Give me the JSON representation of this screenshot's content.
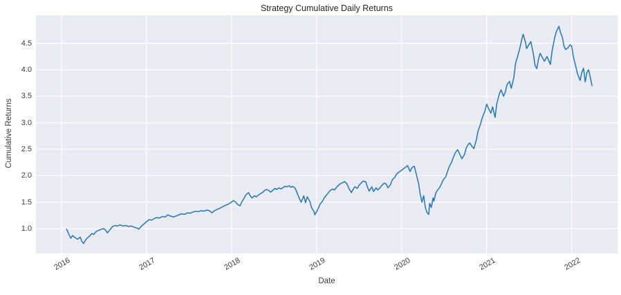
{
  "figure": {
    "background": "#ffffff"
  },
  "chart_data": {
    "type": "line",
    "title": "Strategy Cumulative Daily Returns",
    "xlabel": "Date",
    "ylabel": "Cumulative Returns",
    "xlim": [
      2015.7,
      2022.54
    ],
    "ylim": [
      0.53,
      5.03
    ],
    "grid": true,
    "legend": false,
    "x_ticks": [
      {
        "label": "2016",
        "value": 2016
      },
      {
        "label": "2017",
        "value": 2017
      },
      {
        "label": "2018",
        "value": 2018
      },
      {
        "label": "2019",
        "value": 2019
      },
      {
        "label": "2020",
        "value": 2020
      },
      {
        "label": "2021",
        "value": 2021
      },
      {
        "label": "2022",
        "value": 2022
      }
    ],
    "y_ticks": [
      {
        "label": "1.0",
        "value": 1.0
      },
      {
        "label": "1.5",
        "value": 1.5
      },
      {
        "label": "2.0",
        "value": 2.0
      },
      {
        "label": "2.5",
        "value": 2.5
      },
      {
        "label": "3.0",
        "value": 3.0
      },
      {
        "label": "3.5",
        "value": 3.5
      },
      {
        "label": "4.0",
        "value": 4.0
      },
      {
        "label": "4.5",
        "value": 4.5
      }
    ],
    "style": {
      "axes_background": "#eaeaf2",
      "grid_color": "#ffffff",
      "line_color": "#1f77b4",
      "line_width": 1.5,
      "title_color": "#262626",
      "tick_color": "#3a3a3a"
    },
    "series": [
      {
        "name": "Strategy",
        "color": "#1f77b4",
        "points": [
          [
            2016.06,
            0.99
          ],
          [
            2016.09,
            0.88
          ],
          [
            2016.11,
            0.82
          ],
          [
            2016.13,
            0.87
          ],
          [
            2016.16,
            0.83
          ],
          [
            2016.19,
            0.8
          ],
          [
            2016.22,
            0.84
          ],
          [
            2016.24,
            0.76
          ],
          [
            2016.26,
            0.72
          ],
          [
            2016.29,
            0.8
          ],
          [
            2016.33,
            0.86
          ],
          [
            2016.36,
            0.91
          ],
          [
            2016.38,
            0.89
          ],
          [
            2016.41,
            0.95
          ],
          [
            2016.44,
            0.97
          ],
          [
            2016.47,
            0.99
          ],
          [
            2016.5,
            1.0
          ],
          [
            2016.52,
            0.97
          ],
          [
            2016.54,
            0.92
          ],
          [
            2016.57,
            0.98
          ],
          [
            2016.6,
            1.04
          ],
          [
            2016.63,
            1.06
          ],
          [
            2016.66,
            1.05
          ],
          [
            2016.69,
            1.07
          ],
          [
            2016.72,
            1.05
          ],
          [
            2016.76,
            1.06
          ],
          [
            2016.79,
            1.04
          ],
          [
            2016.82,
            1.05
          ],
          [
            2016.85,
            1.03
          ],
          [
            2016.89,
            1.01
          ],
          [
            2016.91,
            0.99
          ],
          [
            2016.93,
            1.03
          ],
          [
            2016.97,
            1.09
          ],
          [
            2017.0,
            1.13
          ],
          [
            2017.03,
            1.17
          ],
          [
            2017.06,
            1.16
          ],
          [
            2017.09,
            1.19
          ],
          [
            2017.12,
            1.21
          ],
          [
            2017.15,
            1.2
          ],
          [
            2017.19,
            1.23
          ],
          [
            2017.22,
            1.22
          ],
          [
            2017.25,
            1.26
          ],
          [
            2017.28,
            1.24
          ],
          [
            2017.32,
            1.22
          ],
          [
            2017.35,
            1.24
          ],
          [
            2017.38,
            1.26
          ],
          [
            2017.41,
            1.28
          ],
          [
            2017.45,
            1.27
          ],
          [
            2017.48,
            1.3
          ],
          [
            2017.51,
            1.29
          ],
          [
            2017.54,
            1.31
          ],
          [
            2017.58,
            1.33
          ],
          [
            2017.61,
            1.32
          ],
          [
            2017.64,
            1.34
          ],
          [
            2017.67,
            1.33
          ],
          [
            2017.71,
            1.35
          ],
          [
            2017.74,
            1.34
          ],
          [
            2017.77,
            1.3
          ],
          [
            2017.8,
            1.34
          ],
          [
            2017.84,
            1.37
          ],
          [
            2017.87,
            1.39
          ],
          [
            2017.9,
            1.42
          ],
          [
            2017.93,
            1.44
          ],
          [
            2017.97,
            1.47
          ],
          [
            2018.0,
            1.5
          ],
          [
            2018.02,
            1.53
          ],
          [
            2018.05,
            1.5
          ],
          [
            2018.07,
            1.46
          ],
          [
            2018.1,
            1.43
          ],
          [
            2018.12,
            1.5
          ],
          [
            2018.15,
            1.58
          ],
          [
            2018.17,
            1.64
          ],
          [
            2018.2,
            1.68
          ],
          [
            2018.22,
            1.62
          ],
          [
            2018.24,
            1.58
          ],
          [
            2018.27,
            1.62
          ],
          [
            2018.29,
            1.6
          ],
          [
            2018.32,
            1.64
          ],
          [
            2018.34,
            1.66
          ],
          [
            2018.37,
            1.69
          ],
          [
            2018.39,
            1.72
          ],
          [
            2018.41,
            1.74
          ],
          [
            2018.44,
            1.72
          ],
          [
            2018.46,
            1.69
          ],
          [
            2018.49,
            1.73
          ],
          [
            2018.51,
            1.76
          ],
          [
            2018.53,
            1.74
          ],
          [
            2018.56,
            1.77
          ],
          [
            2018.58,
            1.75
          ],
          [
            2018.61,
            1.78
          ],
          [
            2018.63,
            1.8
          ],
          [
            2018.65,
            1.79
          ],
          [
            2018.68,
            1.81
          ],
          [
            2018.7,
            1.78
          ],
          [
            2018.72,
            1.8
          ],
          [
            2018.75,
            1.76
          ],
          [
            2018.77,
            1.68
          ],
          [
            2018.8,
            1.56
          ],
          [
            2018.82,
            1.5
          ],
          [
            2018.85,
            1.62
          ],
          [
            2018.87,
            1.49
          ],
          [
            2018.89,
            1.6
          ],
          [
            2018.92,
            1.52
          ],
          [
            2018.94,
            1.4
          ],
          [
            2018.97,
            1.32
          ],
          [
            2018.98,
            1.26
          ],
          [
            2019.02,
            1.38
          ],
          [
            2019.04,
            1.46
          ],
          [
            2019.07,
            1.52
          ],
          [
            2019.09,
            1.58
          ],
          [
            2019.11,
            1.62
          ],
          [
            2019.14,
            1.68
          ],
          [
            2019.16,
            1.72
          ],
          [
            2019.19,
            1.75
          ],
          [
            2019.21,
            1.73
          ],
          [
            2019.24,
            1.79
          ],
          [
            2019.26,
            1.82
          ],
          [
            2019.28,
            1.85
          ],
          [
            2019.31,
            1.87
          ],
          [
            2019.33,
            1.89
          ],
          [
            2019.36,
            1.84
          ],
          [
            2019.38,
            1.76
          ],
          [
            2019.41,
            1.68
          ],
          [
            2019.43,
            1.74
          ],
          [
            2019.45,
            1.79
          ],
          [
            2019.48,
            1.76
          ],
          [
            2019.5,
            1.82
          ],
          [
            2019.53,
            1.87
          ],
          [
            2019.55,
            1.9
          ],
          [
            2019.58,
            1.88
          ],
          [
            2019.6,
            1.78
          ],
          [
            2019.62,
            1.71
          ],
          [
            2019.65,
            1.79
          ],
          [
            2019.67,
            1.7
          ],
          [
            2019.7,
            1.77
          ],
          [
            2019.72,
            1.73
          ],
          [
            2019.75,
            1.78
          ],
          [
            2019.77,
            1.82
          ],
          [
            2019.8,
            1.86
          ],
          [
            2019.82,
            1.84
          ],
          [
            2019.84,
            1.77
          ],
          [
            2019.87,
            1.83
          ],
          [
            2019.89,
            1.92
          ],
          [
            2019.92,
            1.97
          ],
          [
            2019.94,
            2.03
          ],
          [
            2019.97,
            2.07
          ],
          [
            2020.0,
            2.1
          ],
          [
            2020.02,
            2.13
          ],
          [
            2020.05,
            2.16
          ],
          [
            2020.07,
            2.19
          ],
          [
            2020.1,
            2.08
          ],
          [
            2020.12,
            2.15
          ],
          [
            2020.15,
            2.18
          ],
          [
            2020.17,
            2.05
          ],
          [
            2020.2,
            1.85
          ],
          [
            2020.22,
            1.65
          ],
          [
            2020.24,
            1.5
          ],
          [
            2020.26,
            1.62
          ],
          [
            2020.28,
            1.4
          ],
          [
            2020.3,
            1.3
          ],
          [
            2020.32,
            1.27
          ],
          [
            2020.33,
            1.48
          ],
          [
            2020.35,
            1.4
          ],
          [
            2020.37,
            1.58
          ],
          [
            2020.38,
            1.52
          ],
          [
            2020.4,
            1.66
          ],
          [
            2020.42,
            1.72
          ],
          [
            2020.45,
            1.78
          ],
          [
            2020.47,
            1.85
          ],
          [
            2020.49,
            1.92
          ],
          [
            2020.52,
            1.98
          ],
          [
            2020.54,
            2.08
          ],
          [
            2020.56,
            2.17
          ],
          [
            2020.59,
            2.26
          ],
          [
            2020.61,
            2.35
          ],
          [
            2020.63,
            2.43
          ],
          [
            2020.66,
            2.49
          ],
          [
            2020.68,
            2.42
          ],
          [
            2020.71,
            2.32
          ],
          [
            2020.74,
            2.4
          ],
          [
            2020.76,
            2.52
          ],
          [
            2020.78,
            2.58
          ],
          [
            2020.8,
            2.62
          ],
          [
            2020.83,
            2.55
          ],
          [
            2020.85,
            2.51
          ],
          [
            2020.88,
            2.68
          ],
          [
            2020.9,
            2.85
          ],
          [
            2020.93,
            2.98
          ],
          [
            2020.95,
            3.1
          ],
          [
            2020.98,
            3.22
          ],
          [
            2021.0,
            3.35
          ],
          [
            2021.02,
            3.28
          ],
          [
            2021.05,
            3.18
          ],
          [
            2021.07,
            3.3
          ],
          [
            2021.1,
            3.1
          ],
          [
            2021.12,
            3.36
          ],
          [
            2021.15,
            3.55
          ],
          [
            2021.17,
            3.62
          ],
          [
            2021.2,
            3.5
          ],
          [
            2021.22,
            3.58
          ],
          [
            2021.24,
            3.72
          ],
          [
            2021.27,
            3.78
          ],
          [
            2021.29,
            3.65
          ],
          [
            2021.32,
            3.85
          ],
          [
            2021.34,
            4.12
          ],
          [
            2021.37,
            4.28
          ],
          [
            2021.39,
            4.4
          ],
          [
            2021.41,
            4.55
          ],
          [
            2021.43,
            4.67
          ],
          [
            2021.46,
            4.5
          ],
          [
            2021.47,
            4.4
          ],
          [
            2021.5,
            4.48
          ],
          [
            2021.52,
            4.53
          ],
          [
            2021.55,
            4.3
          ],
          [
            2021.57,
            4.08
          ],
          [
            2021.59,
            4.02
          ],
          [
            2021.61,
            4.2
          ],
          [
            2021.63,
            4.31
          ],
          [
            2021.66,
            4.22
          ],
          [
            2021.68,
            4.16
          ],
          [
            2021.71,
            4.25
          ],
          [
            2021.73,
            4.18
          ],
          [
            2021.75,
            4.1
          ],
          [
            2021.77,
            4.35
          ],
          [
            2021.8,
            4.6
          ],
          [
            2021.82,
            4.72
          ],
          [
            2021.85,
            4.82
          ],
          [
            2021.87,
            4.7
          ],
          [
            2021.89,
            4.62
          ],
          [
            2021.91,
            4.45
          ],
          [
            2021.93,
            4.38
          ],
          [
            2021.96,
            4.42
          ],
          [
            2021.98,
            4.47
          ],
          [
            2022.0,
            4.45
          ],
          [
            2022.02,
            4.25
          ],
          [
            2022.05,
            4.05
          ],
          [
            2022.07,
            3.92
          ],
          [
            2022.1,
            3.8
          ],
          [
            2022.12,
            3.95
          ],
          [
            2022.14,
            4.03
          ],
          [
            2022.16,
            3.77
          ],
          [
            2022.18,
            3.95
          ],
          [
            2022.2,
            4.0
          ],
          [
            2022.22,
            3.85
          ],
          [
            2022.24,
            3.7
          ]
        ]
      }
    ]
  }
}
